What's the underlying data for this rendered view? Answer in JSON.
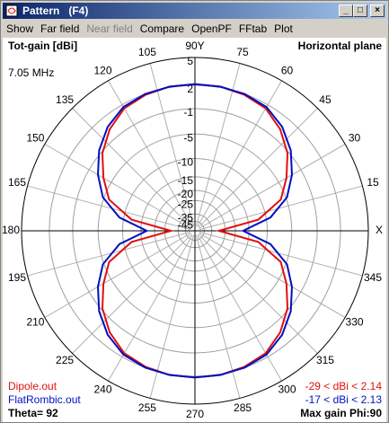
{
  "window": {
    "title": "Pattern   (F4)",
    "menu": [
      "Show",
      "Far field",
      "Near field",
      "Compare",
      "OpenPF",
      "FFtab",
      "Plot"
    ],
    "disabled_menu": [
      2
    ]
  },
  "chart_data": {
    "type": "polar",
    "title": "Tot-gain [dBi]",
    "subtitle": "Horizontal plane",
    "frequency": "7.05 MHz",
    "theta_label": "Theta= 92",
    "max_gain_label": "Max gain Phi:90",
    "radial_scale": "arrl-log",
    "rlim": [
      -45,
      5
    ],
    "rticks": [
      5,
      2,
      -1,
      -5,
      -10,
      -15,
      -20,
      -25,
      -35,
      -45
    ],
    "angle_ticks": [
      {
        "value": 0,
        "label": "X"
      },
      15,
      30,
      45,
      60,
      75,
      {
        "value": 90,
        "label": "90Y"
      },
      105,
      120,
      135,
      150,
      165,
      180,
      195,
      210,
      225,
      240,
      255,
      270,
      285,
      300,
      315,
      330,
      345
    ],
    "theta": [
      0,
      10,
      20,
      30,
      40,
      50,
      60,
      70,
      80,
      90,
      100,
      110,
      120,
      130,
      140,
      150,
      160,
      170,
      180,
      190,
      200,
      210,
      220,
      230,
      240,
      250,
      260,
      270,
      280,
      290,
      300,
      310,
      320,
      330,
      340,
      350
    ],
    "series": [
      {
        "name": "Dipole.out",
        "color": "#e01010",
        "range_label": "-29 < dBi < 2.14",
        "values": [
          -29,
          -12,
          -6,
          -3.5,
          -1.2,
          0.4,
          1.5,
          1.9,
          2.1,
          2.14,
          2.1,
          1.9,
          1.5,
          0.4,
          -1.2,
          -3.5,
          -6,
          -12,
          -29,
          -12,
          -6,
          -3.5,
          -1.2,
          0.4,
          1.5,
          1.9,
          2.1,
          2.14,
          2.1,
          1.9,
          1.5,
          0.4,
          -1.2,
          -3.5,
          -6,
          -12
        ]
      },
      {
        "name": "FlatRombic.out",
        "color": "#0010c0",
        "range_label": "-17 < dBi < 2.13",
        "values": [
          -17,
          -9,
          -4.8,
          -2.5,
          -0.6,
          0.8,
          1.7,
          2.0,
          2.1,
          2.13,
          2.1,
          2.0,
          1.7,
          0.8,
          -0.6,
          -2.5,
          -4.8,
          -9,
          -17,
          -9,
          -4.8,
          -2.5,
          -0.6,
          0.8,
          1.7,
          2.0,
          2.1,
          2.13,
          2.1,
          2.0,
          1.7,
          0.8,
          -0.6,
          -2.5,
          -4.8,
          -9
        ]
      }
    ]
  }
}
